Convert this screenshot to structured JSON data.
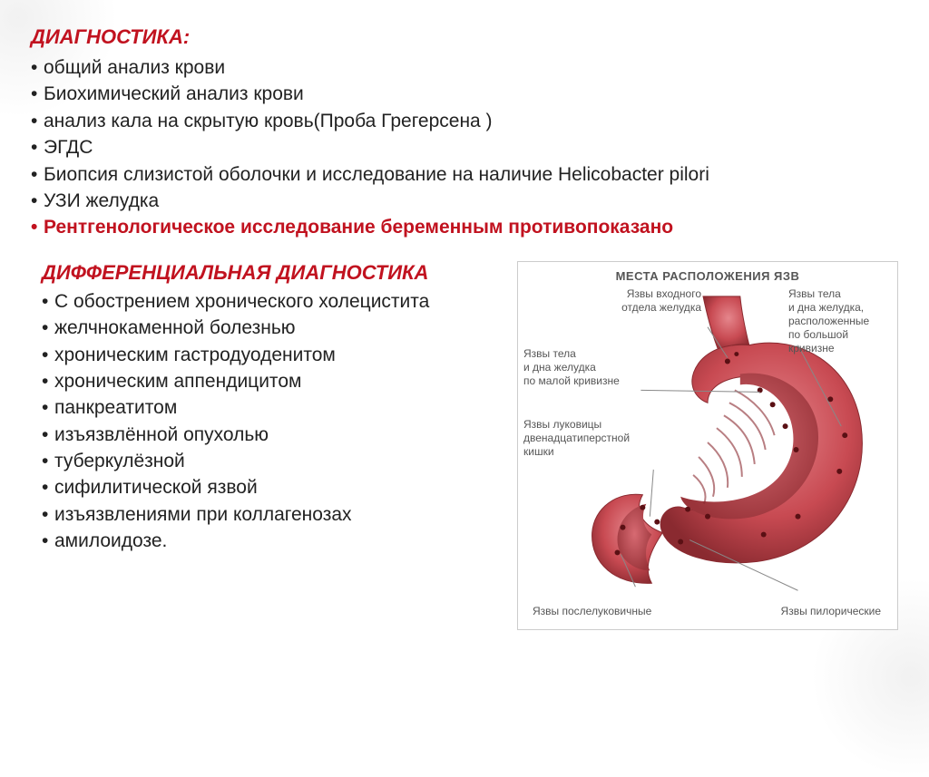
{
  "diag_heading": "ДИАГНОСТИКА:",
  "diag_items": [
    "общий анализ крови",
    "Биохимический анализ крови",
    "анализ кала на скрытую кровь(Проба Грегерсена )",
    " ЭГДС",
    "Биопсия слизистой оболочки и исследование на наличие Helicobacter pilori",
    "УЗИ желудка"
  ],
  "diag_warning": "Рентгенологическое исследование беременным противопоказано",
  "diff_heading": "ДИФФЕРЕНЦИАЛЬНАЯ ДИАГНОСТИКА",
  "diff_items": [
    "С обострением хронического холецистита",
    "желчнокаменной болезнью",
    "хроническим гастродуоденитом",
    " хроническим аппендицитом",
    " панкреатитом",
    "изъязвлённой опухолью",
    " туберкулёзной",
    " сифилитической язвой",
    " изъязвлениями при коллагенозах",
    " амилоидозе."
  ],
  "diagram": {
    "title": "МЕСТА РАСПОЛОЖЕНИЯ ЯЗВ",
    "labels": {
      "l1": "Язвы входного\nотдела желудка",
      "l2": "Язвы тела\nи дна желудка\nпо малой кривизне",
      "l3": "Язвы луковицы\nдвенадцатиперстной\nкишки",
      "r1": "Язвы тела\nи дна желудка,\nрасположенные\nпо большой\nкривизне",
      "b1": "Язвы послелуковичные",
      "b2": "Язвы пилорические"
    },
    "colors": {
      "stomach_fill": "#c84a52",
      "stomach_light": "#e5868c",
      "stomach_dark": "#8a2a30",
      "leader": "#888888",
      "label_text": "#666666",
      "ulcer": "#5a1014"
    }
  },
  "style": {
    "red": "#c1121f",
    "text": "#222222",
    "body_fontsize": 21,
    "heading_fontsize": 22,
    "diagram_label_fontsize": 12
  }
}
